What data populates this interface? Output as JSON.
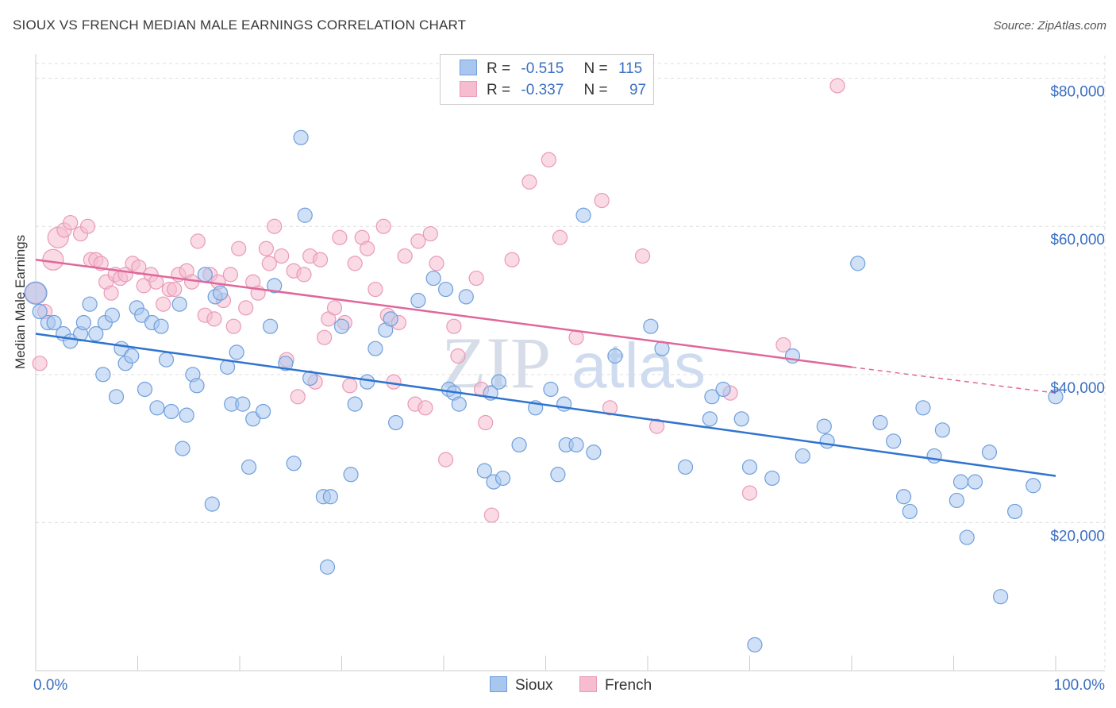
{
  "header": {
    "title": "SIOUX VS FRENCH MEDIAN MALE EARNINGS CORRELATION CHART",
    "source": "Source: ZipAtlas.com"
  },
  "legend": {
    "sioux": {
      "r_label": "R =",
      "r_value": "-0.515",
      "n_label": "N =",
      "n_value": "115"
    },
    "french": {
      "r_label": "R =",
      "r_value": "-0.337",
      "n_label": "N =",
      "n_value": "97"
    }
  },
  "watermark": {
    "zip": "ZIP",
    "atlas": "atlas"
  },
  "colors": {
    "sioux_fill": "#a9c7ee",
    "sioux_stroke": "#6f9fdc",
    "sioux_line": "#2f74d0",
    "french_fill": "#f6bcd0",
    "french_stroke": "#e99ab7",
    "french_line": "#e0679a",
    "axis_text": "#3b6fc4",
    "grid": "#dddddd"
  },
  "chart_data": {
    "type": "scatter",
    "title": "SIOUX VS FRENCH MEDIAN MALE EARNINGS CORRELATION CHART",
    "xlabel": "",
    "ylabel": "Median Male Earnings",
    "xlim": [
      0,
      100
    ],
    "ylim": [
      0,
      82000
    ],
    "x_tick_labels": [
      "0.0%",
      "100.0%"
    ],
    "y_ticks": [
      20000,
      40000,
      60000,
      80000
    ],
    "y_tick_labels": [
      "$20,000",
      "$40,000",
      "$60,000",
      "$80,000"
    ],
    "legend_labels": [
      "Sioux",
      "French"
    ],
    "series": [
      {
        "name": "Sioux",
        "trend": {
          "x": [
            0,
            100
          ],
          "y": [
            45500,
            26300
          ]
        },
        "points": [
          [
            0,
            51000
          ],
          [
            0.4,
            48500
          ],
          [
            1.2,
            47000
          ],
          [
            1.8,
            47000
          ],
          [
            2.7,
            45500
          ],
          [
            3.4,
            44500
          ],
          [
            4.4,
            45500
          ],
          [
            4.7,
            47000
          ],
          [
            5.3,
            49500
          ],
          [
            5.9,
            45500
          ],
          [
            6.6,
            40000
          ],
          [
            6.8,
            47000
          ],
          [
            7.5,
            48000
          ],
          [
            7.9,
            37000
          ],
          [
            8.4,
            43500
          ],
          [
            8.8,
            41500
          ],
          [
            9.4,
            42500
          ],
          [
            9.9,
            49000
          ],
          [
            10.4,
            48000
          ],
          [
            10.7,
            38000
          ],
          [
            11.4,
            47000
          ],
          [
            11.9,
            35500
          ],
          [
            12.3,
            46500
          ],
          [
            12.8,
            42000
          ],
          [
            13.3,
            35000
          ],
          [
            14.1,
            49500
          ],
          [
            14.4,
            30000
          ],
          [
            14.8,
            34500
          ],
          [
            15.4,
            40000
          ],
          [
            15.8,
            38500
          ],
          [
            16.6,
            53500
          ],
          [
            17.3,
            22500
          ],
          [
            17.6,
            50500
          ],
          [
            18.1,
            51000
          ],
          [
            18.8,
            41000
          ],
          [
            19.2,
            36000
          ],
          [
            19.7,
            43000
          ],
          [
            20.3,
            36000
          ],
          [
            20.9,
            27500
          ],
          [
            21.3,
            34000
          ],
          [
            22.3,
            35000
          ],
          [
            23.0,
            46500
          ],
          [
            23.4,
            52000
          ],
          [
            24.5,
            41500
          ],
          [
            25.3,
            28000
          ],
          [
            26.0,
            72000
          ],
          [
            26.4,
            61500
          ],
          [
            26.9,
            39500
          ],
          [
            28.2,
            23500
          ],
          [
            28.6,
            14000
          ],
          [
            28.9,
            23500
          ],
          [
            30.0,
            46500
          ],
          [
            30.9,
            26500
          ],
          [
            31.3,
            36000
          ],
          [
            32.5,
            39000
          ],
          [
            33.3,
            43500
          ],
          [
            34.3,
            46000
          ],
          [
            34.8,
            47500
          ],
          [
            35.3,
            33500
          ],
          [
            37.5,
            50000
          ],
          [
            39.0,
            53000
          ],
          [
            40.2,
            51500
          ],
          [
            40.5,
            38000
          ],
          [
            41.0,
            37500
          ],
          [
            41.5,
            36000
          ],
          [
            42.2,
            50500
          ],
          [
            44.0,
            27000
          ],
          [
            44.6,
            37500
          ],
          [
            44.9,
            25500
          ],
          [
            45.4,
            39000
          ],
          [
            45.8,
            26000
          ],
          [
            47.4,
            30500
          ],
          [
            49.0,
            35500
          ],
          [
            50.5,
            38000
          ],
          [
            51.2,
            26500
          ],
          [
            51.8,
            36000
          ],
          [
            52.0,
            30500
          ],
          [
            53.0,
            30500
          ],
          [
            53.7,
            61500
          ],
          [
            54.7,
            29500
          ],
          [
            56.8,
            42500
          ],
          [
            60.3,
            46500
          ],
          [
            61.4,
            43500
          ],
          [
            63.7,
            27500
          ],
          [
            66.1,
            34000
          ],
          [
            66.3,
            37000
          ],
          [
            67.4,
            38000
          ],
          [
            69.2,
            34000
          ],
          [
            70.0,
            27500
          ],
          [
            70.5,
            3500
          ],
          [
            72.2,
            26000
          ],
          [
            74.2,
            42500
          ],
          [
            75.2,
            29000
          ],
          [
            77.3,
            33000
          ],
          [
            77.6,
            31000
          ],
          [
            80.6,
            55000
          ],
          [
            82.8,
            33500
          ],
          [
            84.1,
            31000
          ],
          [
            85.1,
            23500
          ],
          [
            85.7,
            21500
          ],
          [
            87.0,
            35500
          ],
          [
            88.1,
            29000
          ],
          [
            88.9,
            32500
          ],
          [
            90.3,
            23000
          ],
          [
            90.7,
            25500
          ],
          [
            91.3,
            18000
          ],
          [
            92.1,
            25500
          ],
          [
            93.5,
            29500
          ],
          [
            94.6,
            10000
          ],
          [
            96.0,
            21500
          ],
          [
            97.8,
            25000
          ],
          [
            100.0,
            37000
          ]
        ]
      },
      {
        "name": "French",
        "trend": {
          "x": [
            0,
            80
          ],
          "y": [
            55500,
            41000
          ]
        },
        "trend_dashed": {
          "x": [
            80,
            100
          ],
          "y": [
            41000,
            37500
          ]
        },
        "points": [
          [
            0,
            51000
          ],
          [
            0.4,
            41500
          ],
          [
            0.9,
            48500
          ],
          [
            1.7,
            55500
          ],
          [
            2.2,
            58500
          ],
          [
            2.8,
            59500
          ],
          [
            3.4,
            60500
          ],
          [
            4.4,
            59000
          ],
          [
            5.1,
            60000
          ],
          [
            5.4,
            55500
          ],
          [
            5.9,
            55500
          ],
          [
            6.4,
            55000
          ],
          [
            6.9,
            52500
          ],
          [
            7.4,
            51000
          ],
          [
            7.8,
            53500
          ],
          [
            8.3,
            53000
          ],
          [
            8.8,
            53500
          ],
          [
            9.5,
            55000
          ],
          [
            10.1,
            54500
          ],
          [
            10.6,
            52000
          ],
          [
            11.3,
            53500
          ],
          [
            11.8,
            52500
          ],
          [
            12.5,
            49500
          ],
          [
            13.1,
            51500
          ],
          [
            13.6,
            51500
          ],
          [
            14.0,
            53500
          ],
          [
            14.8,
            54000
          ],
          [
            15.3,
            52500
          ],
          [
            15.9,
            58000
          ],
          [
            16.6,
            48000
          ],
          [
            17.1,
            53500
          ],
          [
            17.5,
            47500
          ],
          [
            17.9,
            52500
          ],
          [
            18.4,
            50000
          ],
          [
            19.1,
            53500
          ],
          [
            19.4,
            46500
          ],
          [
            19.9,
            57000
          ],
          [
            20.6,
            49000
          ],
          [
            21.3,
            52500
          ],
          [
            21.8,
            51000
          ],
          [
            22.6,
            57000
          ],
          [
            22.9,
            55000
          ],
          [
            23.4,
            60000
          ],
          [
            24.1,
            56000
          ],
          [
            24.6,
            42000
          ],
          [
            25.3,
            54000
          ],
          [
            25.7,
            37000
          ],
          [
            26.3,
            53500
          ],
          [
            26.9,
            56000
          ],
          [
            27.4,
            39000
          ],
          [
            27.9,
            55500
          ],
          [
            28.3,
            45000
          ],
          [
            28.7,
            47500
          ],
          [
            29.3,
            49000
          ],
          [
            29.8,
            58500
          ],
          [
            30.3,
            47000
          ],
          [
            30.8,
            38500
          ],
          [
            31.3,
            55000
          ],
          [
            32.0,
            58500
          ],
          [
            32.5,
            57000
          ],
          [
            33.3,
            51500
          ],
          [
            34.1,
            60000
          ],
          [
            34.5,
            48000
          ],
          [
            35.1,
            39000
          ],
          [
            35.6,
            47000
          ],
          [
            36.2,
            56000
          ],
          [
            37.2,
            36000
          ],
          [
            37.5,
            58000
          ],
          [
            38.2,
            35500
          ],
          [
            38.7,
            59000
          ],
          [
            39.3,
            55000
          ],
          [
            40.2,
            28500
          ],
          [
            41.0,
            46500
          ],
          [
            41.4,
            42500
          ],
          [
            43.2,
            53000
          ],
          [
            43.7,
            38000
          ],
          [
            44.1,
            33500
          ],
          [
            44.7,
            21000
          ],
          [
            46.7,
            55500
          ],
          [
            48.4,
            66000
          ],
          [
            50.3,
            69000
          ],
          [
            51.4,
            58500
          ],
          [
            53.0,
            45000
          ],
          [
            55.5,
            63500
          ],
          [
            56.3,
            35500
          ],
          [
            59.5,
            56000
          ],
          [
            60.9,
            33000
          ],
          [
            68.1,
            37500
          ],
          [
            70.0,
            24000
          ],
          [
            73.3,
            44000
          ],
          [
            78.6,
            79000
          ]
        ]
      }
    ]
  }
}
